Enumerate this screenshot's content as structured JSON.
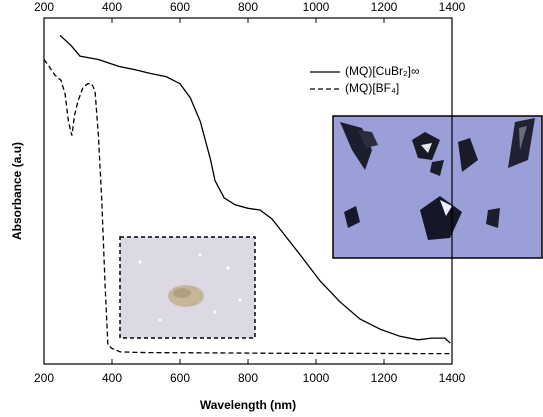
{
  "chart_data": {
    "type": "line",
    "x_label": "Wavelength (nm)",
    "y_label": "Absorbance (a.u)",
    "xlim": [
      200,
      1400
    ],
    "xticks": [
      200,
      400,
      600,
      800,
      1000,
      1200,
      1400
    ],
    "ylim": [
      0,
      1
    ],
    "legend": "upper right",
    "series": [
      {
        "name": "(MQ)[CuBr₂]∞",
        "color": "#000000",
        "dash": false,
        "x": [
          247,
          280,
          306,
          360,
          420,
          470,
          512,
          560,
          600,
          630,
          660,
          690,
          703,
          730,
          762,
          800,
          835,
          870,
          894,
          950,
          1012,
          1070,
          1129,
          1190,
          1247,
          1300,
          1340,
          1379,
          1395
        ],
        "values": [
          0.95,
          0.92,
          0.89,
          0.88,
          0.86,
          0.85,
          0.84,
          0.83,
          0.81,
          0.77,
          0.7,
          0.59,
          0.53,
          0.48,
          0.46,
          0.45,
          0.445,
          0.42,
          0.39,
          0.32,
          0.24,
          0.18,
          0.13,
          0.1,
          0.08,
          0.07,
          0.075,
          0.075,
          0.06
        ]
      },
      {
        "name": "(MQ)[BF₄]",
        "color": "#000000",
        "dash": true,
        "x": [
          200,
          215,
          232,
          250,
          262,
          272,
          282,
          290,
          300,
          315,
          329,
          340,
          350,
          360,
          370,
          380,
          388,
          400,
          424,
          500,
          700,
          900,
          1100,
          1300,
          1400
        ],
        "values": [
          0.88,
          0.86,
          0.835,
          0.82,
          0.78,
          0.7,
          0.66,
          0.72,
          0.76,
          0.8,
          0.81,
          0.81,
          0.79,
          0.66,
          0.47,
          0.22,
          0.055,
          0.045,
          0.035,
          0.033,
          0.032,
          0.031,
          0.031,
          0.03,
          0.03
        ]
      }
    ]
  }
}
